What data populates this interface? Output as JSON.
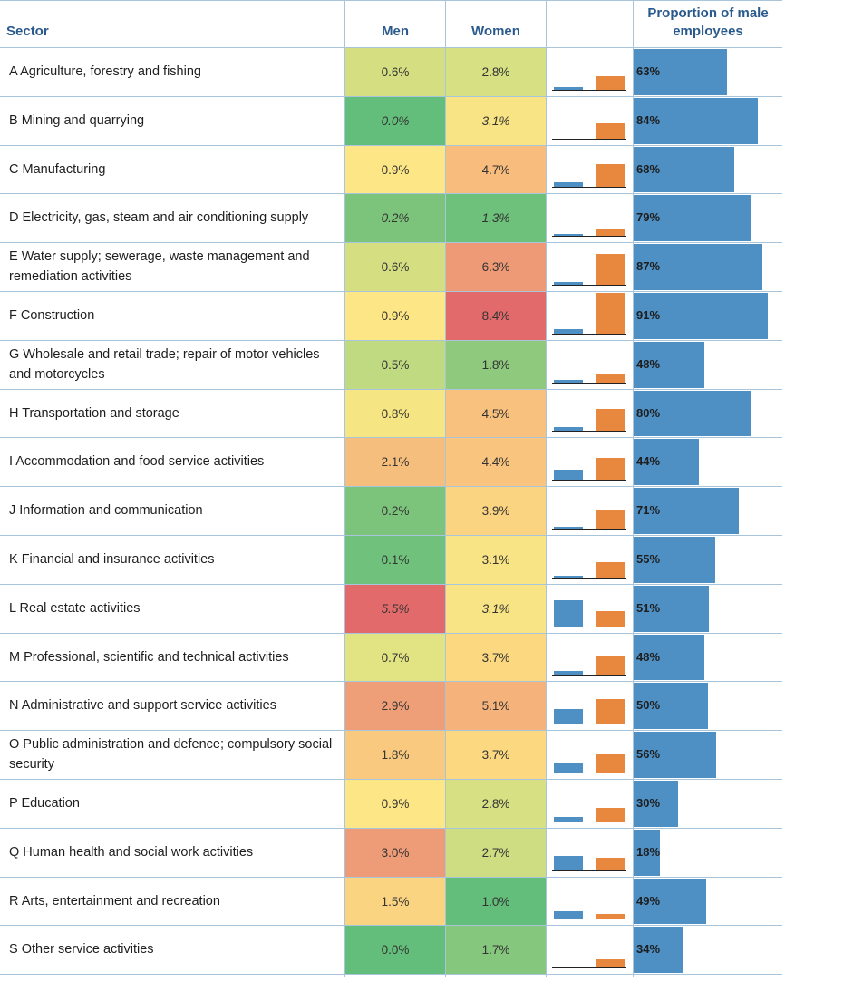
{
  "headers": {
    "sector": "Sector",
    "men": "Men",
    "women": "Women",
    "proportion": "Proportion of male employees"
  },
  "colors": {
    "men_bar": "#4e8fc4",
    "women_bar": "#e8873e",
    "prop_bar": "#4e8fc4",
    "grid": "#a9c5dc"
  },
  "chart_data": {
    "type": "table",
    "title": "",
    "columns": [
      "Sector",
      "Men",
      "Women",
      "",
      "Proportion of male employees"
    ],
    "rows": [
      {
        "sector": "A Agriculture, forestry and fishing",
        "men": "0.6%",
        "women": "2.8%",
        "men_value": 0.6,
        "women_value": 2.8,
        "proportion": "63%",
        "proportion_value": 63,
        "italic": false,
        "men_color": "#d5df82",
        "women_color": "#d7e083"
      },
      {
        "sector": "B Mining and quarrying",
        "men": "0.0%",
        "women": "3.1%",
        "men_value": 0.0,
        "women_value": 3.1,
        "proportion": "84%",
        "proportion_value": 84,
        "italic": true,
        "men_color": "#63be7b",
        "women_color": "#f8e484"
      },
      {
        "sector": "C Manufacturing",
        "men": "0.9%",
        "women": "4.7%",
        "men_value": 0.9,
        "women_value": 4.7,
        "proportion": "68%",
        "proportion_value": 68,
        "italic": false,
        "men_color": "#fde685",
        "women_color": "#f8bd7d"
      },
      {
        "sector": "D Electricity, gas, steam and air conditioning supply",
        "men": "0.2%",
        "women": "1.3%",
        "men_value": 0.2,
        "women_value": 1.3,
        "proportion": "79%",
        "proportion_value": 79,
        "italic": true,
        "men_color": "#7cc47c",
        "women_color": "#6dc17b"
      },
      {
        "sector": "E Water supply; sewerage, waste management and remediation activities",
        "men": "0.6%",
        "women": "6.3%",
        "men_value": 0.6,
        "women_value": 6.3,
        "proportion": "87%",
        "proportion_value": 87,
        "italic": false,
        "men_color": "#d5df82",
        "women_color": "#ee9a77"
      },
      {
        "sector": "F Construction",
        "men": "0.9%",
        "women": "8.4%",
        "men_value": 0.9,
        "women_value": 8.4,
        "proportion": "91%",
        "proportion_value": 91,
        "italic": false,
        "men_color": "#fde685",
        "women_color": "#e26a6b"
      },
      {
        "sector": "G Wholesale and retail trade; repair of motor vehicles and motorcycles",
        "men": "0.5%",
        "women": "1.8%",
        "men_value": 0.5,
        "women_value": 1.8,
        "proportion": "48%",
        "proportion_value": 48,
        "italic": false,
        "men_color": "#c0da81",
        "women_color": "#8ec97e"
      },
      {
        "sector": "H Transportation and storage",
        "men": "0.8%",
        "women": "4.5%",
        "men_value": 0.8,
        "women_value": 4.5,
        "proportion": "80%",
        "proportion_value": 80,
        "italic": false,
        "men_color": "#f5e583",
        "women_color": "#f9c17e"
      },
      {
        "sector": "I Accommodation and food service activities",
        "men": "2.1%",
        "women": "4.4%",
        "men_value": 2.1,
        "women_value": 4.4,
        "proportion": "44%",
        "proportion_value": 44,
        "italic": false,
        "men_color": "#f5be7d",
        "women_color": "#f9c47e"
      },
      {
        "sector": "J Information and communication",
        "men": "0.2%",
        "women": "3.9%",
        "men_value": 0.2,
        "women_value": 3.9,
        "proportion": "71%",
        "proportion_value": 71,
        "italic": false,
        "men_color": "#7cc47c",
        "women_color": "#fbd481"
      },
      {
        "sector": "K Financial and insurance activities",
        "men": "0.1%",
        "women": "3.1%",
        "men_value": 0.1,
        "women_value": 3.1,
        "proportion": "55%",
        "proportion_value": 55,
        "italic": false,
        "men_color": "#6fc17b",
        "women_color": "#f8e484"
      },
      {
        "sector": "L Real estate activities",
        "men": "5.5%",
        "women": "3.1%",
        "men_value": 5.5,
        "women_value": 3.1,
        "proportion": "51%",
        "proportion_value": 51,
        "italic": true,
        "men_color": "#e26a6b",
        "women_color": "#f8e484"
      },
      {
        "sector": "M Professional, scientific and technical activities",
        "men": "0.7%",
        "women": "3.7%",
        "men_value": 0.7,
        "women_value": 3.7,
        "proportion": "48%",
        "proportion_value": 48,
        "italic": false,
        "men_color": "#e2e383",
        "women_color": "#fcd981"
      },
      {
        "sector": "N Administrative and support service activities",
        "men": "2.9%",
        "women": "5.1%",
        "men_value": 2.9,
        "women_value": 5.1,
        "proportion": "50%",
        "proportion_value": 50,
        "italic": false,
        "men_color": "#ef9f78",
        "women_color": "#f5b27b"
      },
      {
        "sector": "O Public administration and defence; compulsory social security",
        "men": "1.8%",
        "women": "3.7%",
        "men_value": 1.8,
        "women_value": 3.7,
        "proportion": "56%",
        "proportion_value": 56,
        "italic": false,
        "men_color": "#f8c97e",
        "women_color": "#fcd981"
      },
      {
        "sector": "P Education",
        "men": "0.9%",
        "women": "2.8%",
        "men_value": 0.9,
        "women_value": 2.8,
        "proportion": "30%",
        "proportion_value": 30,
        "italic": false,
        "men_color": "#fde685",
        "women_color": "#d7e083"
      },
      {
        "sector": "Q Human health and social work activities",
        "men": "3.0%",
        "women": "2.7%",
        "men_value": 3.0,
        "women_value": 2.7,
        "proportion": "18%",
        "proportion_value": 18,
        "italic": false,
        "men_color": "#ee9b77",
        "women_color": "#cfdd82"
      },
      {
        "sector": "R Arts, entertainment and recreation",
        "men": "1.5%",
        "women": "1.0%",
        "men_value": 1.5,
        "women_value": 1.0,
        "proportion": "49%",
        "proportion_value": 49,
        "italic": false,
        "men_color": "#fbd481",
        "women_color": "#63be7b"
      },
      {
        "sector": "S Other service activities",
        "men": "0.0%",
        "women": "1.7%",
        "men_value": 0.0,
        "women_value": 1.7,
        "proportion": "34%",
        "proportion_value": 34,
        "italic": false,
        "men_color": "#63be7b",
        "women_color": "#85c77d"
      }
    ]
  }
}
